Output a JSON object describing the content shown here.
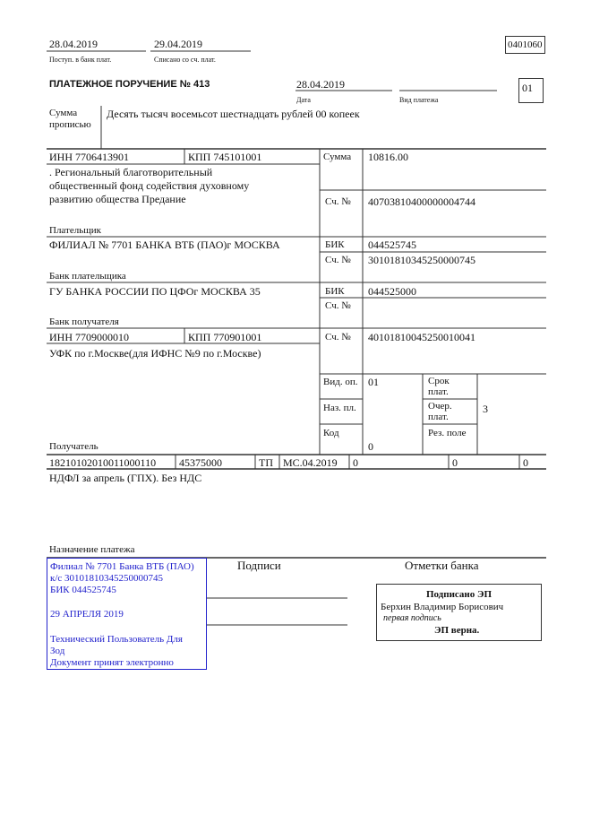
{
  "header": {
    "received_date": "28.04.2019",
    "received_label": "Поступ. в банк плат.",
    "debited_date": "29.04.2019",
    "debited_label": "Списано со сч. плат.",
    "form_code": "0401060",
    "title": "ПЛАТЕЖНОЕ ПОРУЧЕНИЕ № 413",
    "date": "28.04.2019",
    "date_label": "Дата",
    "payment_type_label": "Вид платежа",
    "status_code": "01"
  },
  "amount_words": {
    "label_1": "Сумма",
    "label_2": "прописью",
    "value": "Десять тысяч восемьсот шестнадцать рублей 00 копеек"
  },
  "payer": {
    "inn": "ИНН 7706413901",
    "kpp": "КПП 745101001",
    "name": [
      ". Региональный благотворительный",
      "общественный фонд содействия духовному",
      "развитию общества Предание"
    ],
    "label": "Плательщик",
    "amount_label": "Сумма",
    "amount": "10816.00",
    "account_label": "Сч. №",
    "account": "40703810400000004744"
  },
  "payer_bank": {
    "name": "ФИЛИАЛ № 7701 БАНКА ВТБ (ПАО)г МОСКВА",
    "label": "Банк плательщика",
    "bik_label": "БИК",
    "bik": "044525745",
    "account_label": "Сч. №",
    "account": "30101810345250000745"
  },
  "recipient_bank": {
    "name": "ГУ БАНКА РОССИИ ПО ЦФОг МОСКВА 35",
    "label": "Банк получателя",
    "bik_label": "БИК",
    "bik": "044525000",
    "account_label": "Сч. №"
  },
  "recipient": {
    "inn": "ИНН 7709000010",
    "kpp": "КПП 770901001",
    "name": "УФК по г.Москве(для ИФНС №9 по г.Москве)",
    "label": "Получатель",
    "account_label": "Сч. №",
    "account": "40101810045250010041"
  },
  "codes": {
    "op_type_label": "Вид. оп.",
    "op_type": "01",
    "purpose_label": "Наз. пл.",
    "code_label": "Код",
    "code": "0",
    "term_label_1": "Срок",
    "term_label_2": "плат.",
    "priority_label_1": "Очер.",
    "priority_label_2": "плат.",
    "priority": "3",
    "reserve_label": "Рез. поле"
  },
  "tax_row": [
    "18210102010011000110",
    "45375000",
    "ТП",
    "МС.04.2019",
    "0",
    "0",
    "0"
  ],
  "purpose": {
    "text": "НДФЛ за апрель (ГПХ). Без НДС",
    "label": "Назначение платежа"
  },
  "bank_stamp": {
    "lines": [
      "Филиал № 7701 Банка ВТБ (ПАО)",
      "к/с 30101810345250000745",
      "БИК 044525745",
      "29 АПРЕЛЯ 2019",
      "Технический Пользователь Для",
      "Зод",
      "Документ принят электронно"
    ],
    "color": "#2222cc"
  },
  "signatures_label": "Подписи",
  "bank_marks_label": "Отметки банка",
  "esign": {
    "title": "Подписано ЭП",
    "signer": "Берхин Владимир Борисович",
    "role": "первая подпись",
    "status": "ЭП верна."
  }
}
